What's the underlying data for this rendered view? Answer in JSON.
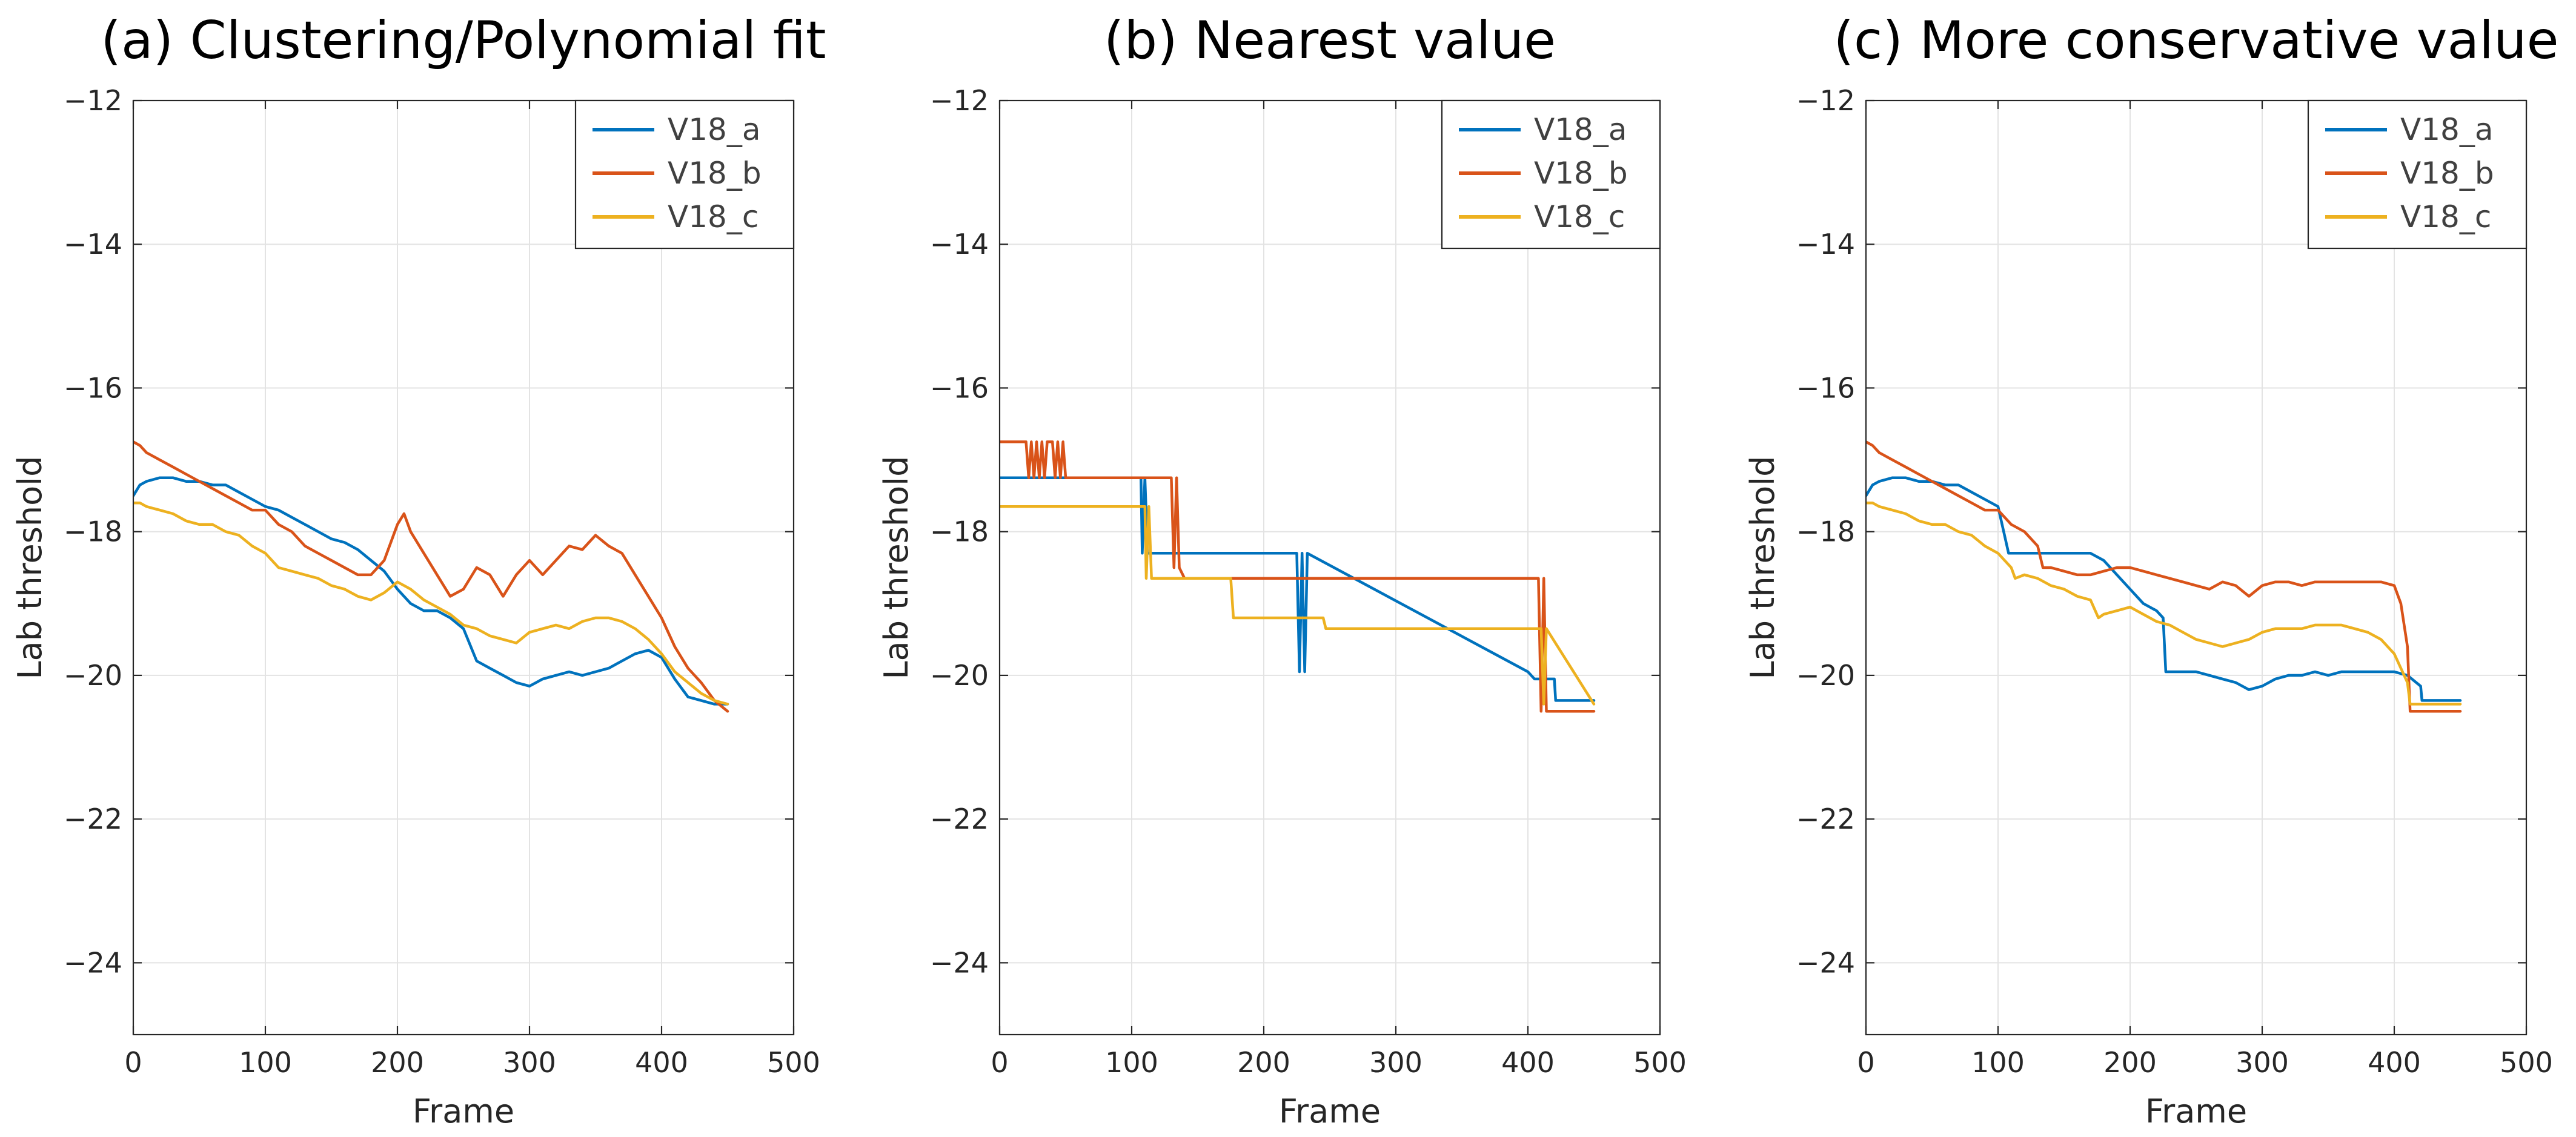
{
  "chart_data": [
    {
      "type": "line",
      "title": "(a) Clustering/Polynomial fit",
      "xlabel": "Frame",
      "ylabel": "Lab threshold",
      "xlim": [
        0,
        500
      ],
      "ylim": [
        -25,
        -12
      ],
      "xticks": [
        0,
        100,
        200,
        300,
        400,
        500
      ],
      "yticks": [
        -24,
        -22,
        -20,
        -18,
        -16,
        -14,
        -12
      ],
      "xtick_labels": [
        "0",
        "100",
        "200",
        "300",
        "400",
        "500"
      ],
      "ytick_labels": [
        "−24",
        "−22",
        "−20",
        "−18",
        "−16",
        "−14",
        "−12"
      ],
      "grid": true,
      "legend": "top-right",
      "series": [
        {
          "name": "V18_a",
          "color": "#0072BD",
          "x": [
            0,
            5,
            10,
            20,
            30,
            40,
            50,
            60,
            70,
            80,
            90,
            100,
            110,
            120,
            130,
            140,
            150,
            160,
            170,
            180,
            190,
            200,
            210,
            220,
            230,
            240,
            250,
            260,
            270,
            280,
            290,
            300,
            310,
            320,
            330,
            340,
            350,
            360,
            370,
            380,
            390,
            400,
            410,
            420,
            430,
            440,
            450
          ],
          "y": [
            -17.5,
            -17.35,
            -17.3,
            -17.25,
            -17.25,
            -17.3,
            -17.3,
            -17.35,
            -17.35,
            -17.45,
            -17.55,
            -17.65,
            -17.7,
            -17.8,
            -17.9,
            -18.0,
            -18.1,
            -18.15,
            -18.25,
            -18.4,
            -18.55,
            -18.8,
            -19.0,
            -19.1,
            -19.1,
            -19.2,
            -19.35,
            -19.8,
            -19.9,
            -20.0,
            -20.1,
            -20.15,
            -20.05,
            -20.0,
            -19.95,
            -20.0,
            -19.95,
            -19.9,
            -19.8,
            -19.7,
            -19.65,
            -19.75,
            -20.05,
            -20.3,
            -20.35,
            -20.4,
            -20.4
          ]
        },
        {
          "name": "V18_b",
          "color": "#D95319",
          "x": [
            0,
            5,
            10,
            20,
            30,
            40,
            50,
            60,
            70,
            80,
            90,
            100,
            110,
            120,
            130,
            140,
            150,
            160,
            170,
            180,
            190,
            200,
            205,
            210,
            220,
            230,
            240,
            250,
            260,
            270,
            280,
            290,
            300,
            310,
            320,
            330,
            340,
            350,
            360,
            370,
            380,
            390,
            400,
            410,
            420,
            430,
            440,
            450
          ],
          "y": [
            -16.75,
            -16.8,
            -16.9,
            -17.0,
            -17.1,
            -17.2,
            -17.3,
            -17.4,
            -17.5,
            -17.6,
            -17.7,
            -17.7,
            -17.9,
            -18.0,
            -18.2,
            -18.3,
            -18.4,
            -18.5,
            -18.6,
            -18.6,
            -18.4,
            -17.9,
            -17.75,
            -18.0,
            -18.3,
            -18.6,
            -18.9,
            -18.8,
            -18.5,
            -18.6,
            -18.9,
            -18.6,
            -18.4,
            -18.6,
            -18.4,
            -18.2,
            -18.25,
            -18.05,
            -18.2,
            -18.3,
            -18.6,
            -18.9,
            -19.2,
            -19.6,
            -19.9,
            -20.1,
            -20.35,
            -20.5
          ]
        },
        {
          "name": "V18_c",
          "color": "#EDB120",
          "x": [
            0,
            5,
            10,
            20,
            30,
            40,
            50,
            60,
            70,
            80,
            90,
            100,
            110,
            120,
            130,
            140,
            150,
            160,
            170,
            180,
            190,
            200,
            210,
            220,
            230,
            240,
            250,
            260,
            270,
            280,
            290,
            300,
            310,
            320,
            330,
            340,
            350,
            360,
            370,
            380,
            390,
            400,
            410,
            420,
            430,
            440,
            450
          ],
          "y": [
            -17.6,
            -17.6,
            -17.65,
            -17.7,
            -17.75,
            -17.85,
            -17.9,
            -17.9,
            -18.0,
            -18.05,
            -18.2,
            -18.3,
            -18.5,
            -18.55,
            -18.6,
            -18.65,
            -18.75,
            -18.8,
            -18.9,
            -18.95,
            -18.85,
            -18.7,
            -18.8,
            -18.95,
            -19.05,
            -19.15,
            -19.3,
            -19.35,
            -19.45,
            -19.5,
            -19.55,
            -19.4,
            -19.35,
            -19.3,
            -19.35,
            -19.25,
            -19.2,
            -19.2,
            -19.25,
            -19.35,
            -19.5,
            -19.7,
            -19.95,
            -20.1,
            -20.25,
            -20.35,
            -20.4
          ]
        }
      ]
    },
    {
      "type": "line",
      "title": "(b) Nearest value",
      "xlabel": "Frame",
      "ylabel": "Lab threshold",
      "xlim": [
        0,
        500
      ],
      "ylim": [
        -25,
        -12
      ],
      "xticks": [
        0,
        100,
        200,
        300,
        400,
        500
      ],
      "yticks": [
        -24,
        -22,
        -20,
        -18,
        -16,
        -14,
        -12
      ],
      "xtick_labels": [
        "0",
        "100",
        "200",
        "300",
        "400",
        "500"
      ],
      "ytick_labels": [
        "−24",
        "−22",
        "−20",
        "−18",
        "−16",
        "−14",
        "−12"
      ],
      "grid": true,
      "legend": "top-right",
      "series": [
        {
          "name": "V18_a",
          "color": "#0072BD",
          "x": [
            0,
            107,
            108,
            110,
            112,
            225,
            227,
            229,
            231,
            233,
            400,
            405,
            420,
            421,
            450
          ],
          "y": [
            -17.25,
            -17.25,
            -18.3,
            -17.25,
            -18.3,
            -18.3,
            -19.95,
            -18.3,
            -19.95,
            -18.3,
            -19.95,
            -20.05,
            -20.05,
            -20.35,
            -20.35
          ]
        },
        {
          "name": "V18_b",
          "color": "#D95319",
          "x": [
            0,
            20,
            22,
            24,
            26,
            28,
            30,
            32,
            34,
            36,
            40,
            42,
            44,
            46,
            48,
            50,
            52,
            130,
            132,
            134,
            136,
            140,
            408,
            410,
            412,
            414,
            450
          ],
          "y": [
            -16.75,
            -16.75,
            -17.25,
            -16.75,
            -17.25,
            -16.75,
            -17.25,
            -16.75,
            -17.25,
            -16.75,
            -16.75,
            -17.25,
            -16.75,
            -17.25,
            -16.75,
            -17.25,
            -17.25,
            -17.25,
            -18.5,
            -17.25,
            -18.5,
            -18.65,
            -18.65,
            -20.5,
            -18.65,
            -20.5,
            -20.5
          ]
        },
        {
          "name": "V18_c",
          "color": "#EDB120",
          "x": [
            0,
            110,
            111,
            113,
            115,
            175,
            177,
            245,
            247,
            410,
            412,
            414,
            450
          ],
          "y": [
            -17.65,
            -17.65,
            -18.65,
            -17.65,
            -18.65,
            -18.65,
            -19.2,
            -19.2,
            -19.35,
            -19.35,
            -20.4,
            -19.35,
            -20.4
          ]
        }
      ]
    },
    {
      "type": "line",
      "title": "(c) More conservative value",
      "xlabel": "Frame",
      "ylabel": "Lab threshold",
      "xlim": [
        0,
        500
      ],
      "ylim": [
        -25,
        -12
      ],
      "xticks": [
        0,
        100,
        200,
        300,
        400,
        500
      ],
      "yticks": [
        -24,
        -22,
        -20,
        -18,
        -16,
        -14,
        -12
      ],
      "xtick_labels": [
        "0",
        "100",
        "200",
        "300",
        "400",
        "500"
      ],
      "ytick_labels": [
        "−24",
        "−22",
        "−20",
        "−18",
        "−16",
        "−14",
        "−12"
      ],
      "grid": true,
      "legend": "top-right",
      "series": [
        {
          "name": "V18_a",
          "color": "#0072BD",
          "x": [
            0,
            5,
            10,
            20,
            30,
            40,
            50,
            60,
            70,
            80,
            90,
            100,
            108,
            110,
            120,
            130,
            140,
            150,
            160,
            170,
            180,
            190,
            200,
            210,
            220,
            225,
            227,
            230,
            240,
            250,
            260,
            270,
            280,
            290,
            300,
            310,
            320,
            330,
            340,
            350,
            360,
            370,
            380,
            390,
            400,
            410,
            420,
            421,
            450
          ],
          "y": [
            -17.5,
            -17.35,
            -17.3,
            -17.25,
            -17.25,
            -17.3,
            -17.3,
            -17.35,
            -17.35,
            -17.45,
            -17.55,
            -17.65,
            -18.3,
            -18.3,
            -18.3,
            -18.3,
            -18.3,
            -18.3,
            -18.3,
            -18.3,
            -18.4,
            -18.6,
            -18.8,
            -19.0,
            -19.1,
            -19.2,
            -19.95,
            -19.95,
            -19.95,
            -19.95,
            -20.0,
            -20.05,
            -20.1,
            -20.2,
            -20.15,
            -20.05,
            -20.0,
            -20.0,
            -19.95,
            -20.0,
            -19.95,
            -19.95,
            -19.95,
            -19.95,
            -19.95,
            -20.0,
            -20.15,
            -20.35,
            -20.35
          ]
        },
        {
          "name": "V18_b",
          "color": "#D95319",
          "x": [
            0,
            5,
            10,
            20,
            30,
            40,
            50,
            60,
            70,
            80,
            90,
            100,
            110,
            120,
            130,
            134,
            140,
            150,
            160,
            170,
            180,
            190,
            200,
            210,
            220,
            230,
            240,
            250,
            260,
            270,
            280,
            290,
            300,
            310,
            320,
            330,
            340,
            350,
            360,
            370,
            380,
            390,
            400,
            405,
            410,
            412,
            450
          ],
          "y": [
            -16.75,
            -16.8,
            -16.9,
            -17.0,
            -17.1,
            -17.2,
            -17.3,
            -17.4,
            -17.5,
            -17.6,
            -17.7,
            -17.7,
            -17.9,
            -18.0,
            -18.2,
            -18.5,
            -18.5,
            -18.55,
            -18.6,
            -18.6,
            -18.55,
            -18.5,
            -18.5,
            -18.55,
            -18.6,
            -18.65,
            -18.7,
            -18.75,
            -18.8,
            -18.7,
            -18.75,
            -18.9,
            -18.75,
            -18.7,
            -18.7,
            -18.75,
            -18.7,
            -18.7,
            -18.7,
            -18.7,
            -18.7,
            -18.7,
            -18.75,
            -19.0,
            -19.6,
            -20.5,
            -20.5
          ]
        },
        {
          "name": "V18_c",
          "color": "#EDB120",
          "x": [
            0,
            5,
            10,
            20,
            30,
            40,
            50,
            60,
            70,
            80,
            90,
            100,
            110,
            113,
            120,
            130,
            140,
            150,
            160,
            170,
            176,
            180,
            190,
            200,
            210,
            220,
            230,
            240,
            250,
            260,
            270,
            280,
            290,
            300,
            310,
            320,
            330,
            340,
            350,
            360,
            370,
            380,
            390,
            400,
            405,
            410,
            412,
            450
          ],
          "y": [
            -17.6,
            -17.6,
            -17.65,
            -17.7,
            -17.75,
            -17.85,
            -17.9,
            -17.9,
            -18.0,
            -18.05,
            -18.2,
            -18.3,
            -18.5,
            -18.65,
            -18.6,
            -18.65,
            -18.75,
            -18.8,
            -18.9,
            -18.95,
            -19.2,
            -19.15,
            -19.1,
            -19.05,
            -19.15,
            -19.25,
            -19.3,
            -19.4,
            -19.5,
            -19.55,
            -19.6,
            -19.55,
            -19.5,
            -19.4,
            -19.35,
            -19.35,
            -19.35,
            -19.3,
            -19.3,
            -19.3,
            -19.35,
            -19.4,
            -19.5,
            -19.7,
            -19.9,
            -20.1,
            -20.4,
            -20.4
          ]
        }
      ]
    }
  ]
}
